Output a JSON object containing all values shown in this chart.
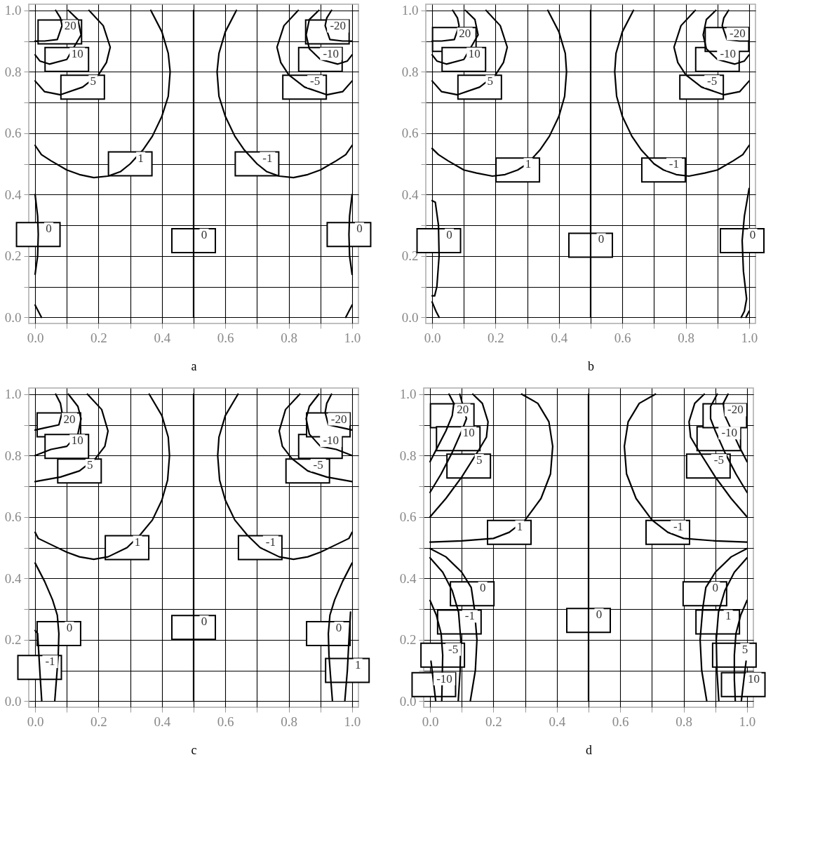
{
  "chart_data": [
    {
      "type": "line",
      "xlabel": "a",
      "xlim": [
        -0.02,
        1.02
      ],
      "ylim": [
        -0.02,
        1.02
      ],
      "grid": true,
      "xticks": [
        {
          "value": 0,
          "label": "0.0"
        },
        {
          "value": 0.1,
          "label": null
        },
        0.2,
        {
          "value": 0.3,
          "label": null
        },
        0.4,
        {
          "value": 0.5,
          "label": null
        },
        0.6,
        {
          "value": 0.7,
          "label": null
        },
        0.8,
        {
          "value": 0.9,
          "label": null
        },
        {
          "value": 1,
          "label": "1.0"
        }
      ],
      "yticks": [
        {
          "value": 0,
          "label": "0.0"
        },
        {
          "value": 0.1,
          "label": null
        },
        0.2,
        {
          "value": 0.3,
          "label": null
        },
        0.4,
        {
          "value": 0.5,
          "label": null
        },
        0.6,
        {
          "value": 0.7,
          "label": null
        },
        0.8,
        {
          "value": 0.9,
          "label": null
        },
        {
          "value": 1,
          "label": "1.0"
        }
      ],
      "series": [
        {
          "color": "#000000",
          "x": [
            0.065,
            0.08,
            0.085,
            0.07,
            0.03,
            0
          ],
          "values": [
            1,
            0.975,
            0.95,
            0.905,
            0.9,
            0.9
          ]
        },
        {
          "color": "#000000",
          "x": [
            0.935,
            0.92,
            0.915,
            0.93,
            0.97,
            1
          ],
          "values": [
            1,
            0.975,
            0.95,
            0.905,
            0.9,
            0.9
          ]
        },
        {
          "color": "#000000",
          "x": [
            0.105,
            0.135,
            0.145,
            0.1,
            0.045,
            0.015,
            0
          ],
          "values": [
            1,
            0.97,
            0.92,
            0.84,
            0.825,
            0.835,
            0.855
          ]
        },
        {
          "color": "#000000",
          "x": [
            0.895,
            0.865,
            0.855,
            0.865,
            0.9,
            0.955,
            0.985,
            1
          ],
          "values": [
            1,
            0.97,
            0.92,
            0.875,
            0.84,
            0.825,
            0.835,
            0.855
          ]
        },
        {
          "color": "#000000",
          "x": [
            0.17,
            0.215,
            0.237,
            0.225,
            0.2,
            0.15,
            0.08,
            0.03,
            0
          ],
          "values": [
            1,
            0.95,
            0.88,
            0.83,
            0.79,
            0.75,
            0.725,
            0.735,
            0.77
          ]
        },
        {
          "color": "#000000",
          "x": [
            0.83,
            0.785,
            0.763,
            0.775,
            0.8,
            0.85,
            0.92,
            0.97,
            1
          ],
          "values": [
            1,
            0.95,
            0.88,
            0.83,
            0.79,
            0.75,
            0.725,
            0.735,
            0.77
          ]
        },
        {
          "color": "#000000",
          "x": [
            0.365,
            0.4,
            0.42,
            0.426,
            0.42,
            0.4,
            0.37,
            0.34,
            0.3,
            0.27,
            0.23,
            0.185,
            0.14,
            0.1,
            0.05,
            0.02,
            0
          ],
          "values": [
            1,
            0.93,
            0.86,
            0.8,
            0.72,
            0.655,
            0.59,
            0.545,
            0.5,
            0.475,
            0.46,
            0.455,
            0.465,
            0.48,
            0.51,
            0.53,
            0.56
          ]
        },
        {
          "color": "#000000",
          "x": [
            0.635,
            0.6,
            0.58,
            0.574,
            0.58,
            0.6,
            0.63,
            0.66,
            0.7,
            0.73,
            0.77,
            0.815,
            0.86,
            0.9,
            0.95,
            0.98,
            1
          ],
          "values": [
            1,
            0.93,
            0.86,
            0.8,
            0.72,
            0.655,
            0.59,
            0.545,
            0.5,
            0.475,
            0.46,
            0.455,
            0.465,
            0.48,
            0.51,
            0.53,
            0.56
          ]
        },
        {
          "color": "#000000",
          "x": [
            0.5,
            0.5
          ],
          "values": [
            0,
            1
          ]
        },
        {
          "color": "#000000",
          "x": [
            0,
            0.008,
            0.01,
            0.008,
            0
          ],
          "values": [
            0.4,
            0.33,
            0.27,
            0.2,
            0.14
          ]
        },
        {
          "color": "#000000",
          "x": [
            1,
            0.992,
            0.99,
            0.992,
            1
          ],
          "values": [
            0.4,
            0.33,
            0.27,
            0.2,
            0.14
          ]
        },
        {
          "color": "#000000",
          "x": [
            0,
            0.02
          ],
          "values": [
            0.04,
            0
          ]
        },
        {
          "color": "#000000",
          "x": [
            1,
            0.98
          ],
          "values": [
            0.04,
            0
          ]
        }
      ],
      "annotations": [
        {
          "text": "20",
          "x": 0.078,
          "y": 0.93
        },
        {
          "text": "10",
          "x": 0.1,
          "y": 0.84
        },
        {
          "text": "5",
          "x": 0.15,
          "y": 0.75
        },
        {
          "text": "1",
          "x": 0.3,
          "y": 0.5
        },
        {
          "text": "-1",
          "x": 0.7,
          "y": 0.5
        },
        {
          "text": "-5",
          "x": 0.85,
          "y": 0.75
        },
        {
          "text": "-10",
          "x": 0.9,
          "y": 0.84
        },
        {
          "text": "-20",
          "x": 0.922,
          "y": 0.93
        },
        {
          "text": "0",
          "x": 0.01,
          "y": 0.27
        },
        {
          "text": "0",
          "x": 0.5,
          "y": 0.25
        },
        {
          "text": "0",
          "x": 0.99,
          "y": 0.27
        }
      ]
    },
    {
      "type": "line",
      "xlabel": "b",
      "xlim": [
        -0.02,
        1.02
      ],
      "ylim": [
        -0.02,
        1.02
      ],
      "grid": true,
      "xticks": [
        {
          "value": 0,
          "label": "0.0"
        },
        {
          "value": 0.1,
          "label": null
        },
        0.2,
        {
          "value": 0.3,
          "label": null
        },
        0.4,
        {
          "value": 0.5,
          "label": null
        },
        0.6,
        {
          "value": 0.7,
          "label": null
        },
        0.8,
        {
          "value": 0.9,
          "label": null
        },
        {
          "value": 1,
          "label": "1.0"
        }
      ],
      "yticks": [
        {
          "value": 0,
          "label": "0.0"
        },
        {
          "value": 0.1,
          "label": null
        },
        0.2,
        {
          "value": 0.3,
          "label": null
        },
        0.4,
        {
          "value": 0.5,
          "label": null
        },
        0.6,
        {
          "value": 0.7,
          "label": null
        },
        0.8,
        {
          "value": 0.9,
          "label": null
        },
        {
          "value": 1,
          "label": "1.0"
        }
      ],
      "series": [
        {
          "color": "#000000",
          "x": [
            0.065,
            0.08,
            0.085,
            0.07,
            0.03,
            0
          ],
          "values": [
            1,
            0.975,
            0.95,
            0.905,
            0.9,
            0.9
          ]
        },
        {
          "color": "#000000",
          "x": [
            0.935,
            0.92,
            0.915,
            0.93,
            0.97,
            1
          ],
          "values": [
            1,
            0.975,
            0.95,
            0.905,
            0.9,
            0.9
          ]
        },
        {
          "color": "#000000",
          "x": [
            0.105,
            0.135,
            0.145,
            0.1,
            0.045,
            0.015,
            0
          ],
          "values": [
            1,
            0.97,
            0.92,
            0.84,
            0.825,
            0.835,
            0.855
          ]
        },
        {
          "color": "#000000",
          "x": [
            0.895,
            0.865,
            0.855,
            0.865,
            0.9,
            0.955,
            0.985,
            1
          ],
          "values": [
            1,
            0.97,
            0.92,
            0.875,
            0.84,
            0.825,
            0.835,
            0.855
          ]
        },
        {
          "color": "#000000",
          "x": [
            0.17,
            0.215,
            0.237,
            0.225,
            0.2,
            0.15,
            0.08,
            0.03,
            0
          ],
          "values": [
            1,
            0.95,
            0.88,
            0.83,
            0.79,
            0.75,
            0.725,
            0.735,
            0.77
          ]
        },
        {
          "color": "#000000",
          "x": [
            0.83,
            0.785,
            0.763,
            0.775,
            0.8,
            0.85,
            0.92,
            0.97,
            1
          ],
          "values": [
            1,
            0.95,
            0.88,
            0.83,
            0.79,
            0.75,
            0.725,
            0.735,
            0.77
          ]
        },
        {
          "color": "#000000",
          "x": [
            0.365,
            0.4,
            0.42,
            0.424,
            0.418,
            0.4,
            0.37,
            0.34,
            0.3,
            0.27,
            0.23,
            0.19,
            0.14,
            0.1,
            0.05,
            0.02,
            0
          ],
          "values": [
            1,
            0.93,
            0.86,
            0.8,
            0.72,
            0.655,
            0.59,
            0.545,
            0.5,
            0.48,
            0.465,
            0.46,
            0.47,
            0.48,
            0.51,
            0.53,
            0.55
          ]
        },
        {
          "color": "#000000",
          "x": [
            0.635,
            0.6,
            0.58,
            0.576,
            0.582,
            0.6,
            0.63,
            0.66,
            0.7,
            0.73,
            0.77,
            0.81,
            0.86,
            0.9,
            0.95,
            0.98,
            1
          ],
          "values": [
            1,
            0.93,
            0.86,
            0.8,
            0.72,
            0.655,
            0.59,
            0.545,
            0.5,
            0.48,
            0.465,
            0.46,
            0.47,
            0.48,
            0.51,
            0.53,
            0.56
          ]
        },
        {
          "color": "#000000",
          "x": [
            0.5,
            0.5
          ],
          "values": [
            0,
            1
          ]
        },
        {
          "color": "#000000",
          "x": [
            0,
            0.01,
            0.02,
            0.022,
            0.015,
            0.008,
            0
          ],
          "values": [
            0.38,
            0.375,
            0.3,
            0.2,
            0.1,
            0.07,
            0.07
          ]
        },
        {
          "color": "#000000",
          "x": [
            0,
            0.012,
            0.022
          ],
          "values": [
            0.05,
            0.02,
            0
          ]
        },
        {
          "color": "#000000",
          "x": [
            1,
            0.985,
            0.978,
            0.982,
            0.992,
            0.985,
            0.975
          ],
          "values": [
            0.42,
            0.33,
            0.25,
            0.15,
            0.06,
            0.02,
            0
          ]
        },
        {
          "color": "#000000",
          "x": [
            1,
            0.99
          ],
          "values": [
            0.02,
            0
          ]
        }
      ],
      "annotations": [
        {
          "text": "20",
          "x": 0.07,
          "y": 0.905
        },
        {
          "text": "10",
          "x": 0.1,
          "y": 0.84
        },
        {
          "text": "5",
          "x": 0.15,
          "y": 0.75
        },
        {
          "text": "1",
          "x": 0.27,
          "y": 0.48
        },
        {
          "text": "-1",
          "x": 0.73,
          "y": 0.48
        },
        {
          "text": "-5",
          "x": 0.85,
          "y": 0.75
        },
        {
          "text": "-10",
          "x": 0.9,
          "y": 0.84
        },
        {
          "text": "-20",
          "x": 0.93,
          "y": 0.905
        },
        {
          "text": "0",
          "x": 0.021,
          "y": 0.25
        },
        {
          "text": "0",
          "x": 0.5,
          "y": 0.235
        },
        {
          "text": "0",
          "x": 0.978,
          "y": 0.25
        }
      ]
    },
    {
      "type": "line",
      "xlabel": "c",
      "xlim": [
        -0.02,
        1.02
      ],
      "ylim": [
        -0.02,
        1.02
      ],
      "grid": true,
      "xticks": [
        {
          "value": 0,
          "label": "0.0"
        },
        {
          "value": 0.1,
          "label": null
        },
        0.2,
        {
          "value": 0.3,
          "label": null
        },
        0.4,
        {
          "value": 0.5,
          "label": null
        },
        0.6,
        {
          "value": 0.7,
          "label": null
        },
        0.8,
        {
          "value": 0.9,
          "label": null
        },
        {
          "value": 1,
          "label": "1.0"
        }
      ],
      "yticks": [
        {
          "value": 0,
          "label": "0.0"
        },
        {
          "value": 0.1,
          "label": null
        },
        0.2,
        {
          "value": 0.3,
          "label": null
        },
        0.4,
        {
          "value": 0.5,
          "label": null
        },
        0.6,
        {
          "value": 0.7,
          "label": null
        },
        0.8,
        {
          "value": 0.9,
          "label": null
        },
        {
          "value": 1,
          "label": "1.0"
        }
      ],
      "series": [
        {
          "color": "#000000",
          "x": [
            0.065,
            0.08,
            0.085,
            0.075,
            0.03,
            0
          ],
          "values": [
            1,
            0.97,
            0.94,
            0.9,
            0.89,
            0.883
          ]
        },
        {
          "color": "#000000",
          "x": [
            0.935,
            0.92,
            0.915,
            0.925,
            0.97,
            1
          ],
          "values": [
            1,
            0.97,
            0.94,
            0.9,
            0.89,
            0.883
          ]
        },
        {
          "color": "#000000",
          "x": [
            0.105,
            0.135,
            0.145,
            0.135,
            0.1,
            0.05,
            0
          ],
          "values": [
            1,
            0.96,
            0.92,
            0.87,
            0.83,
            0.82,
            0.8
          ]
        },
        {
          "color": "#000000",
          "x": [
            0.895,
            0.865,
            0.855,
            0.865,
            0.9,
            0.95,
            1
          ],
          "values": [
            1,
            0.96,
            0.92,
            0.87,
            0.83,
            0.82,
            0.8
          ]
        },
        {
          "color": "#000000",
          "x": [
            0.165,
            0.21,
            0.23,
            0.22,
            0.19,
            0.14,
            0.08,
            0
          ],
          "values": [
            1,
            0.95,
            0.88,
            0.83,
            0.79,
            0.75,
            0.73,
            0.715
          ]
        },
        {
          "color": "#000000",
          "x": [
            0.835,
            0.79,
            0.77,
            0.78,
            0.81,
            0.86,
            0.92,
            1
          ],
          "values": [
            1,
            0.95,
            0.88,
            0.83,
            0.79,
            0.75,
            0.73,
            0.715
          ]
        },
        {
          "color": "#000000",
          "x": [
            0.36,
            0.4,
            0.42,
            0.424,
            0.418,
            0.4,
            0.37,
            0.33,
            0.29,
            0.23,
            0.185,
            0.14,
            0.1,
            0.05,
            0.01,
            0
          ],
          "values": [
            1,
            0.93,
            0.86,
            0.8,
            0.72,
            0.655,
            0.59,
            0.54,
            0.5,
            0.47,
            0.462,
            0.47,
            0.485,
            0.51,
            0.53,
            0.55
          ]
        },
        {
          "color": "#000000",
          "x": [
            0.64,
            0.6,
            0.58,
            0.576,
            0.582,
            0.6,
            0.63,
            0.67,
            0.71,
            0.77,
            0.815,
            0.86,
            0.9,
            0.95,
            0.99,
            1
          ],
          "values": [
            1,
            0.93,
            0.86,
            0.8,
            0.72,
            0.655,
            0.59,
            0.54,
            0.5,
            0.47,
            0.462,
            0.47,
            0.485,
            0.51,
            0.53,
            0.55
          ]
        },
        {
          "color": "#000000",
          "x": [
            0.5,
            0.5
          ],
          "values": [
            0,
            1
          ]
        },
        {
          "color": "#000000",
          "x": [
            0,
            0.03,
            0.055,
            0.07,
            0.075,
            0.073,
            0.068,
            0.062
          ],
          "values": [
            0.45,
            0.39,
            0.33,
            0.28,
            0.22,
            0.15,
            0.08,
            0
          ]
        },
        {
          "color": "#000000",
          "x": [
            1,
            0.97,
            0.945,
            0.93,
            0.925,
            0.927,
            0.932,
            0.938
          ],
          "values": [
            0.45,
            0.39,
            0.33,
            0.28,
            0.22,
            0.15,
            0.08,
            0
          ]
        },
        {
          "color": "#000000",
          "x": [
            0,
            0.008,
            0.012,
            0.016,
            0.021
          ],
          "values": [
            0.23,
            0.22,
            0.15,
            0.08,
            0
          ]
        },
        {
          "color": "#000000",
          "x": [
            0.995,
            0.99,
            0.985,
            0.977
          ],
          "values": [
            0.29,
            0.2,
            0.1,
            0
          ]
        }
      ],
      "annotations": [
        {
          "text": "20",
          "x": 0.075,
          "y": 0.9
        },
        {
          "text": "10",
          "x": 0.1,
          "y": 0.83
        },
        {
          "text": "5",
          "x": 0.14,
          "y": 0.75
        },
        {
          "text": "1",
          "x": 0.29,
          "y": 0.5
        },
        {
          "text": "-1",
          "x": 0.71,
          "y": 0.5
        },
        {
          "text": "-5",
          "x": 0.86,
          "y": 0.75
        },
        {
          "text": "-10",
          "x": 0.9,
          "y": 0.83
        },
        {
          "text": "-20",
          "x": 0.925,
          "y": 0.9
        },
        {
          "text": "0",
          "x": 0.075,
          "y": 0.22
        },
        {
          "text": "0",
          "x": 0.5,
          "y": 0.24
        },
        {
          "text": "0",
          "x": 0.925,
          "y": 0.22
        },
        {
          "text": "-1",
          "x": 0.0143,
          "y": 0.11
        },
        {
          "text": "1",
          "x": 0.985,
          "y": 0.1
        }
      ]
    },
    {
      "type": "line",
      "xlabel": "d",
      "xlim": [
        -0.02,
        1.02
      ],
      "ylim": [
        -0.02,
        1.02
      ],
      "grid": true,
      "xticks": [
        {
          "value": 0,
          "label": "0.0"
        },
        {
          "value": 0.1,
          "label": null
        },
        0.2,
        {
          "value": 0.3,
          "label": null
        },
        0.4,
        {
          "value": 0.5,
          "label": null
        },
        0.6,
        {
          "value": 0.7,
          "label": null
        },
        0.8,
        {
          "value": 0.9,
          "label": null
        },
        {
          "value": 1,
          "label": "1.0"
        }
      ],
      "yticks": [
        {
          "value": 0,
          "label": "0.0"
        },
        {
          "value": 0.1,
          "label": null
        },
        0.2,
        {
          "value": 0.3,
          "label": null
        },
        0.4,
        {
          "value": 0.5,
          "label": null
        },
        0.6,
        {
          "value": 0.7,
          "label": null
        },
        0.8,
        {
          "value": 0.9,
          "label": null
        },
        {
          "value": 1,
          "label": "1.0"
        }
      ],
      "series": [
        {
          "color": "#000000",
          "x": [
            0.06,
            0.075,
            0.07,
            0.05,
            0.025,
            0
          ],
          "values": [
            1,
            0.97,
            0.93,
            0.88,
            0.83,
            0.78
          ]
        },
        {
          "color": "#000000",
          "x": [
            0.94,
            0.925,
            0.93,
            0.975,
            1
          ],
          "values": [
            1,
            0.97,
            0.93,
            0.83,
            0.78
          ]
        },
        {
          "color": "#000000",
          "x": [
            0.094,
            0.115,
            0.1,
            0.07,
            0.035,
            0
          ],
          "values": [
            1,
            0.92,
            0.88,
            0.81,
            0.74,
            0.68
          ]
        },
        {
          "color": "#000000",
          "x": [
            0.906,
            0.885,
            0.885,
            0.9,
            0.93,
            0.965,
            1
          ],
          "values": [
            1,
            0.96,
            0.92,
            0.88,
            0.81,
            0.74,
            0.68
          ]
        },
        {
          "color": "#000000",
          "x": [
            0.135,
            0.165,
            0.183,
            0.178,
            0.155,
            0.1,
            0.05,
            0
          ],
          "values": [
            1,
            0.97,
            0.91,
            0.86,
            0.82,
            0.73,
            0.66,
            0.6
          ]
        },
        {
          "color": "#000000",
          "x": [
            0.865,
            0.835,
            0.817,
            0.822,
            0.845,
            0.9,
            0.95,
            1
          ],
          "values": [
            1,
            0.97,
            0.91,
            0.86,
            0.82,
            0.73,
            0.66,
            0.6
          ]
        },
        {
          "color": "#000000",
          "x": [
            0.289,
            0.34,
            0.375,
            0.387,
            0.38,
            0.35,
            0.3,
            0.25,
            0.2,
            0.1,
            0
          ],
          "values": [
            1,
            0.97,
            0.91,
            0.83,
            0.74,
            0.66,
            0.59,
            0.55,
            0.53,
            0.522,
            0.518
          ]
        },
        {
          "color": "#000000",
          "x": [
            0.711,
            0.66,
            0.625,
            0.613,
            0.62,
            0.65,
            0.7,
            0.75,
            0.8,
            0.9,
            1
          ],
          "values": [
            1,
            0.97,
            0.91,
            0.83,
            0.74,
            0.66,
            0.59,
            0.55,
            0.53,
            0.522,
            0.518
          ]
        },
        {
          "color": "#000000",
          "x": [
            0.5,
            0.5
          ],
          "values": [
            0,
            1
          ]
        },
        {
          "color": "#000000",
          "x": [
            0,
            0.05,
            0.1,
            0.13,
            0.14,
            0.148,
            0.143,
            0.127
          ],
          "values": [
            0.497,
            0.47,
            0.42,
            0.37,
            0.3,
            0.2,
            0.1,
            0
          ]
        },
        {
          "color": "#000000",
          "x": [
            1,
            0.95,
            0.9,
            0.87,
            0.86,
            0.852,
            0.857,
            0.873
          ],
          "values": [
            0.497,
            0.47,
            0.42,
            0.37,
            0.3,
            0.2,
            0.1,
            0
          ]
        },
        {
          "color": "#000000",
          "x": [
            0,
            0.04,
            0.07,
            0.09,
            0.097,
            0.095,
            0.089
          ],
          "values": [
            0.467,
            0.42,
            0.36,
            0.29,
            0.2,
            0.1,
            0
          ]
        },
        {
          "color": "#000000",
          "x": [
            1,
            0.96,
            0.93,
            0.91,
            0.903,
            0.905,
            0.911
          ],
          "values": [
            0.467,
            0.42,
            0.36,
            0.29,
            0.2,
            0.1,
            0
          ]
        },
        {
          "color": "#000000",
          "x": [
            0,
            0.02,
            0.035,
            0.04,
            0.037
          ],
          "values": [
            0.328,
            0.28,
            0.22,
            0.15,
            0
          ]
        },
        {
          "color": "#000000",
          "x": [
            1,
            0.98,
            0.965,
            0.96,
            0.96,
            0.963
          ],
          "values": [
            0.328,
            0.28,
            0.22,
            0.15,
            0.07,
            0
          ]
        },
        {
          "color": "#000000",
          "x": [
            0.003,
            0.01,
            0.018
          ],
          "values": [
            0.13,
            0.07,
            0
          ]
        },
        {
          "color": "#000000",
          "x": [
            0.997,
            0.99,
            0.982
          ],
          "values": [
            0.13,
            0.07,
            0
          ]
        }
      ],
      "annotations": [
        {
          "text": "20",
          "x": 0.07,
          "y": 0.93
        },
        {
          "text": "10",
          "x": 0.089,
          "y": 0.855
        },
        {
          "text": "5",
          "x": 0.122,
          "y": 0.766
        },
        {
          "text": "1",
          "x": 0.25,
          "y": 0.55
        },
        {
          "text": "-1",
          "x": 0.75,
          "y": 0.55
        },
        {
          "text": "-5",
          "x": 0.878,
          "y": 0.766
        },
        {
          "text": "-10",
          "x": 0.911,
          "y": 0.855
        },
        {
          "text": "-20",
          "x": 0.93,
          "y": 0.93
        },
        {
          "text": "0",
          "x": 0.133,
          "y": 0.35
        },
        {
          "text": "-1",
          "x": 0.0925,
          "y": 0.258
        },
        {
          "text": "-5",
          "x": 0.04,
          "y": 0.15
        },
        {
          "text": "-10",
          "x": 0.012,
          "y": 0.054
        },
        {
          "text": "0",
          "x": 0.5,
          "y": 0.263
        },
        {
          "text": "0",
          "x": 0.867,
          "y": 0.35
        },
        {
          "text": "1",
          "x": 0.9075,
          "y": 0.258
        },
        {
          "text": "5",
          "x": 0.96,
          "y": 0.15
        },
        {
          "text": "10",
          "x": 0.988,
          "y": 0.054
        }
      ]
    }
  ]
}
